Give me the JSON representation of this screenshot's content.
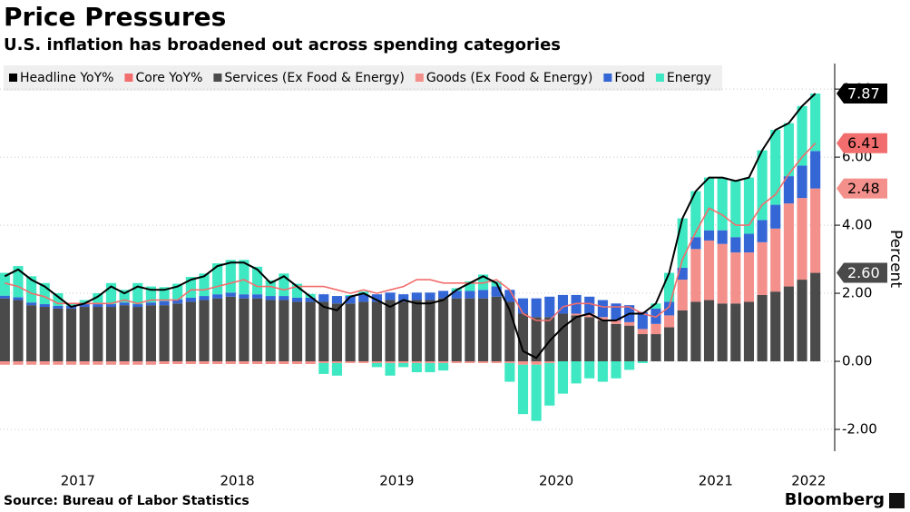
{
  "chart_data": {
    "type": "bar",
    "title": "Price Pressures",
    "subtitle": "U.S. inflation has broadened out across spending categories",
    "y_label": "Percent",
    "source": "Source: Bureau of Labor Statistics",
    "credit": "Bloomberg",
    "categories": [
      null,
      null,
      null,
      null,
      null,
      null,
      "2017",
      null,
      null,
      null,
      null,
      null,
      null,
      null,
      null,
      null,
      null,
      null,
      "2018",
      null,
      null,
      null,
      null,
      null,
      null,
      null,
      null,
      null,
      null,
      null,
      "2019",
      null,
      null,
      null,
      null,
      null,
      null,
      null,
      null,
      null,
      null,
      null,
      "2020",
      null,
      null,
      null,
      null,
      null,
      null,
      null,
      null,
      null,
      null,
      null,
      "2021",
      null,
      null,
      null,
      null,
      null,
      null,
      "2022"
    ],
    "ylim": [
      -2.64,
      8.75
    ],
    "yticks": [
      {
        "value": -2,
        "label": "-2.00"
      },
      {
        "value": 0,
        "label": "0.00"
      },
      {
        "value": 2,
        "label": "2.00"
      },
      {
        "value": 4,
        "label": "4.00"
      },
      {
        "value": 6,
        "label": "6.00"
      },
      {
        "value": 8,
        "label": "8.00"
      }
    ],
    "grid": true,
    "stacked": true,
    "series": [
      {
        "name": "Headline YoY%",
        "kind": "line",
        "color": "#000000",
        "values": [
          2.5,
          2.7,
          2.4,
          2.2,
          1.9,
          1.6,
          1.7,
          1.9,
          2.2,
          2.0,
          2.2,
          2.1,
          2.1,
          2.2,
          2.4,
          2.5,
          2.8,
          2.9,
          2.9,
          2.7,
          2.3,
          2.5,
          2.2,
          1.9,
          1.6,
          1.5,
          1.9,
          2.0,
          1.8,
          1.6,
          1.8,
          1.7,
          1.7,
          1.8,
          2.1,
          2.3,
          2.5,
          2.3,
          1.5,
          0.3,
          0.1,
          0.6,
          1.0,
          1.3,
          1.4,
          1.2,
          1.2,
          1.4,
          1.4,
          1.7,
          2.6,
          4.2,
          5.0,
          5.4,
          5.4,
          5.3,
          5.4,
          6.2,
          6.8,
          7.0,
          7.5,
          7.87
        ]
      },
      {
        "name": "Core YoY%",
        "kind": "line",
        "color": "#f26d6d",
        "values": [
          2.3,
          2.2,
          2.0,
          1.9,
          1.7,
          1.7,
          1.7,
          1.7,
          1.7,
          1.8,
          1.7,
          1.8,
          1.8,
          1.8,
          2.1,
          2.1,
          2.2,
          2.3,
          2.4,
          2.2,
          2.2,
          2.1,
          2.2,
          2.2,
          2.2,
          2.1,
          2.0,
          2.1,
          2.0,
          2.1,
          2.2,
          2.4,
          2.4,
          2.3,
          2.3,
          2.3,
          2.3,
          2.4,
          2.1,
          1.4,
          1.2,
          1.2,
          1.6,
          1.7,
          1.7,
          1.6,
          1.6,
          1.6,
          1.4,
          1.3,
          1.6,
          3.0,
          3.8,
          4.5,
          4.3,
          4.0,
          4.0,
          4.6,
          4.9,
          5.5,
          6.0,
          6.41
        ]
      },
      {
        "name": "Services (Ex Food & Energy)",
        "kind": "bar",
        "color": "#4a4a4a",
        "values": [
          1.85,
          1.8,
          1.65,
          1.6,
          1.55,
          1.55,
          1.6,
          1.6,
          1.6,
          1.65,
          1.6,
          1.65,
          1.65,
          1.7,
          1.75,
          1.8,
          1.85,
          1.9,
          1.85,
          1.85,
          1.8,
          1.8,
          1.75,
          1.75,
          1.75,
          1.7,
          1.7,
          1.75,
          1.75,
          1.8,
          1.75,
          1.8,
          1.8,
          1.85,
          1.85,
          1.85,
          1.85,
          1.9,
          1.75,
          1.4,
          1.3,
          1.3,
          1.4,
          1.35,
          1.3,
          1.2,
          1.1,
          1.05,
          0.8,
          0.8,
          1.0,
          1.5,
          1.75,
          1.8,
          1.7,
          1.7,
          1.75,
          1.95,
          2.05,
          2.2,
          2.4,
          2.6
        ],
        "value_labels": [
          null,
          null,
          null,
          null,
          null,
          null,
          null,
          null,
          null,
          null,
          null,
          null,
          null,
          null,
          null,
          null,
          null,
          null,
          null,
          null,
          null,
          null,
          null,
          null,
          null,
          null,
          null,
          null,
          null,
          null,
          null,
          null,
          null,
          null,
          null,
          null,
          null,
          null,
          null,
          null,
          null,
          null,
          null,
          null,
          null,
          null,
          null,
          null,
          null,
          null,
          null,
          null,
          null,
          null,
          null,
          null,
          null,
          null,
          null,
          null,
          null,
          "2.60"
        ]
      },
      {
        "name": "Goods (Ex Food & Energy)",
        "kind": "bar",
        "color": "#f4908b",
        "values": [
          -0.1,
          -0.1,
          -0.1,
          -0.1,
          -0.1,
          -0.1,
          -0.1,
          -0.1,
          -0.1,
          -0.1,
          -0.1,
          -0.1,
          -0.08,
          -0.08,
          -0.08,
          -0.08,
          -0.08,
          -0.08,
          -0.08,
          -0.08,
          -0.08,
          -0.08,
          -0.08,
          -0.08,
          -0.05,
          -0.05,
          -0.05,
          -0.05,
          -0.05,
          -0.05,
          -0.05,
          -0.05,
          -0.05,
          -0.05,
          -0.05,
          -0.05,
          -0.05,
          -0.05,
          -0.05,
          -0.1,
          -0.1,
          -0.05,
          0.0,
          0.05,
          0.1,
          0.1,
          0.1,
          0.1,
          0.15,
          0.3,
          0.35,
          0.9,
          1.55,
          1.75,
          1.75,
          1.5,
          1.45,
          1.55,
          1.85,
          2.44,
          2.4,
          2.48
        ]
      },
      {
        "name": "Food",
        "kind": "bar",
        "color": "#3466d6",
        "values": [
          0.08,
          0.08,
          0.08,
          0.08,
          0.08,
          0.08,
          0.08,
          0.08,
          0.08,
          0.08,
          0.08,
          0.08,
          0.12,
          0.12,
          0.12,
          0.12,
          0.12,
          0.12,
          0.12,
          0.12,
          0.12,
          0.12,
          0.12,
          0.12,
          0.22,
          0.22,
          0.22,
          0.22,
          0.22,
          0.22,
          0.22,
          0.22,
          0.22,
          0.22,
          0.22,
          0.22,
          0.25,
          0.3,
          0.35,
          0.45,
          0.55,
          0.6,
          0.55,
          0.55,
          0.5,
          0.5,
          0.5,
          0.5,
          0.5,
          0.45,
          0.4,
          0.35,
          0.35,
          0.3,
          0.4,
          0.45,
          0.55,
          0.65,
          0.7,
          0.8,
          0.95,
          1.1
        ]
      },
      {
        "name": "Energy",
        "kind": "bar",
        "color": "#3de8c2",
        "values": [
          0.67,
          0.92,
          0.77,
          0.62,
          0.37,
          0.07,
          0.12,
          0.32,
          0.62,
          0.37,
          0.62,
          0.47,
          0.41,
          0.46,
          0.61,
          0.66,
          0.91,
          0.96,
          1.01,
          0.81,
          0.46,
          0.66,
          0.41,
          0.11,
          -0.32,
          -0.37,
          0.03,
          0.08,
          -0.12,
          -0.37,
          -0.12,
          -0.27,
          -0.27,
          -0.22,
          0.08,
          0.28,
          0.45,
          0.15,
          -0.55,
          -1.45,
          -1.65,
          -1.25,
          -0.95,
          -0.65,
          -0.5,
          -0.6,
          -0.5,
          -0.25,
          -0.05,
          0.15,
          0.85,
          1.45,
          1.35,
          1.55,
          1.55,
          1.65,
          1.65,
          2.05,
          2.2,
          1.56,
          1.75,
          1.69
        ]
      }
    ]
  }
}
